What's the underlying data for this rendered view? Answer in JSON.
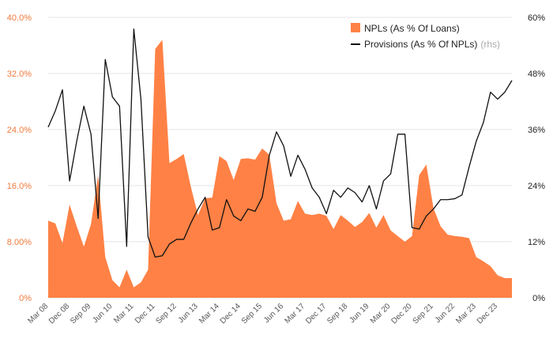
{
  "chart_data": {
    "type": "area",
    "dual_axis": true,
    "grid": true,
    "legend_position": "top-right",
    "x_tick_labels": [
      "Mar 08",
      "Dec 08",
      "Sep 09",
      "Jun 10",
      "Mar 11",
      "Dec 11",
      "Sep 12",
      "Jun 13",
      "Mar 14",
      "Dec 14",
      "Sep 15",
      "Jun 16",
      "Mar 17",
      "Dec 17",
      "Sep 18",
      "Jun 19",
      "Mar 20",
      "Dec 20",
      "Sep 21",
      "Jun 22",
      "Mar 23",
      "Dec 23"
    ],
    "x_quarters": [
      "Mar 08",
      "Jun 08",
      "Sep 08",
      "Dec 08",
      "Mar 09",
      "Jun 09",
      "Sep 09",
      "Dec 09",
      "Mar 10",
      "Jun 10",
      "Sep 10",
      "Dec 10",
      "Mar 11",
      "Jun 11",
      "Sep 11",
      "Dec 11",
      "Mar 12",
      "Jun 12",
      "Sep 12",
      "Dec 12",
      "Mar 13",
      "Jun 13",
      "Sep 13",
      "Dec 13",
      "Mar 14",
      "Jun 14",
      "Sep 14",
      "Dec 14",
      "Mar 15",
      "Jun 15",
      "Sep 15",
      "Dec 15",
      "Mar 16",
      "Jun 16",
      "Sep 16",
      "Dec 16",
      "Mar 17",
      "Jun 17",
      "Sep 17",
      "Dec 17",
      "Mar 18",
      "Jun 18",
      "Sep 18",
      "Dec 18",
      "Mar 19",
      "Jun 19",
      "Sep 19",
      "Dec 19",
      "Mar 20",
      "Jun 20",
      "Sep 20",
      "Dec 20",
      "Mar 21",
      "Jun 21",
      "Sep 21",
      "Dec 21",
      "Mar 22",
      "Jun 22",
      "Sep 22",
      "Dec 22",
      "Mar 23",
      "Jun 23",
      "Sep 23",
      "Dec 23",
      "Mar 24",
      "Jun 24"
    ],
    "y_left": {
      "min": 0,
      "max": 40,
      "ticks": [
        "0%",
        "8.00%",
        "16.0%",
        "24.0%",
        "32.0%",
        "40.0%"
      ],
      "tick_values": [
        0,
        8,
        16,
        24,
        32,
        40
      ],
      "color": "#f07a3c"
    },
    "y_right": {
      "min": 0,
      "max": 60,
      "ticks": [
        "0%",
        "12%",
        "24%",
        "36%",
        "48%",
        "60%"
      ],
      "tick_values": [
        0,
        12,
        24,
        36,
        48,
        60
      ],
      "color": "#222222"
    },
    "series": [
      {
        "name": "NPLs (As % Of Loans)",
        "kind": "area",
        "axis": "left",
        "color": "#ff8145",
        "values": [
          11.0,
          10.6,
          7.8,
          13.3,
          10.2,
          7.3,
          10.5,
          17.5,
          5.8,
          2.5,
          1.5,
          4.0,
          1.5,
          2.2,
          4.0,
          35.5,
          36.8,
          19.2,
          19.8,
          20.5,
          15.8,
          11.8,
          14.2,
          14.3,
          20.2,
          19.5,
          16.8,
          19.8,
          19.9,
          19.7,
          21.3,
          20.4,
          13.5,
          11.0,
          11.2,
          13.8,
          12.0,
          11.8,
          12.0,
          11.7,
          9.8,
          11.8,
          11.0,
          10.1,
          10.8,
          12.1,
          10.0,
          11.8,
          9.6,
          8.8,
          8.0,
          8.8,
          17.5,
          19.0,
          12.8,
          10.2,
          9.0,
          8.8,
          8.7,
          8.5,
          5.8,
          5.2,
          4.5,
          3.2,
          2.8,
          2.8
        ]
      },
      {
        "name": "Provisions (As % Of NPLs)",
        "name_suffix": "(rhs)",
        "kind": "line",
        "axis": "right",
        "color": "#111111",
        "values": [
          36.5,
          40.0,
          44.5,
          25.0,
          33.5,
          41.0,
          35.0,
          17.0,
          51.0,
          43.0,
          41.0,
          11.0,
          57.5,
          42.5,
          13.0,
          8.7,
          9.0,
          11.5,
          12.5,
          12.5,
          16.0,
          19.0,
          21.5,
          14.5,
          15.0,
          21.0,
          17.5,
          16.5,
          19.0,
          18.5,
          21.5,
          30.5,
          35.5,
          32.5,
          26.0,
          30.5,
          27.5,
          23.5,
          21.5,
          18.0,
          23.0,
          21.5,
          23.5,
          22.5,
          20.5,
          24.0,
          19.0,
          25.0,
          26.5,
          35.0,
          35.0,
          15.0,
          14.7,
          17.5,
          19.0,
          21.0,
          21.0,
          21.2,
          22.0,
          28.0,
          33.5,
          37.5,
          44.0,
          42.5,
          44.0,
          46.5
        ]
      }
    ]
  }
}
